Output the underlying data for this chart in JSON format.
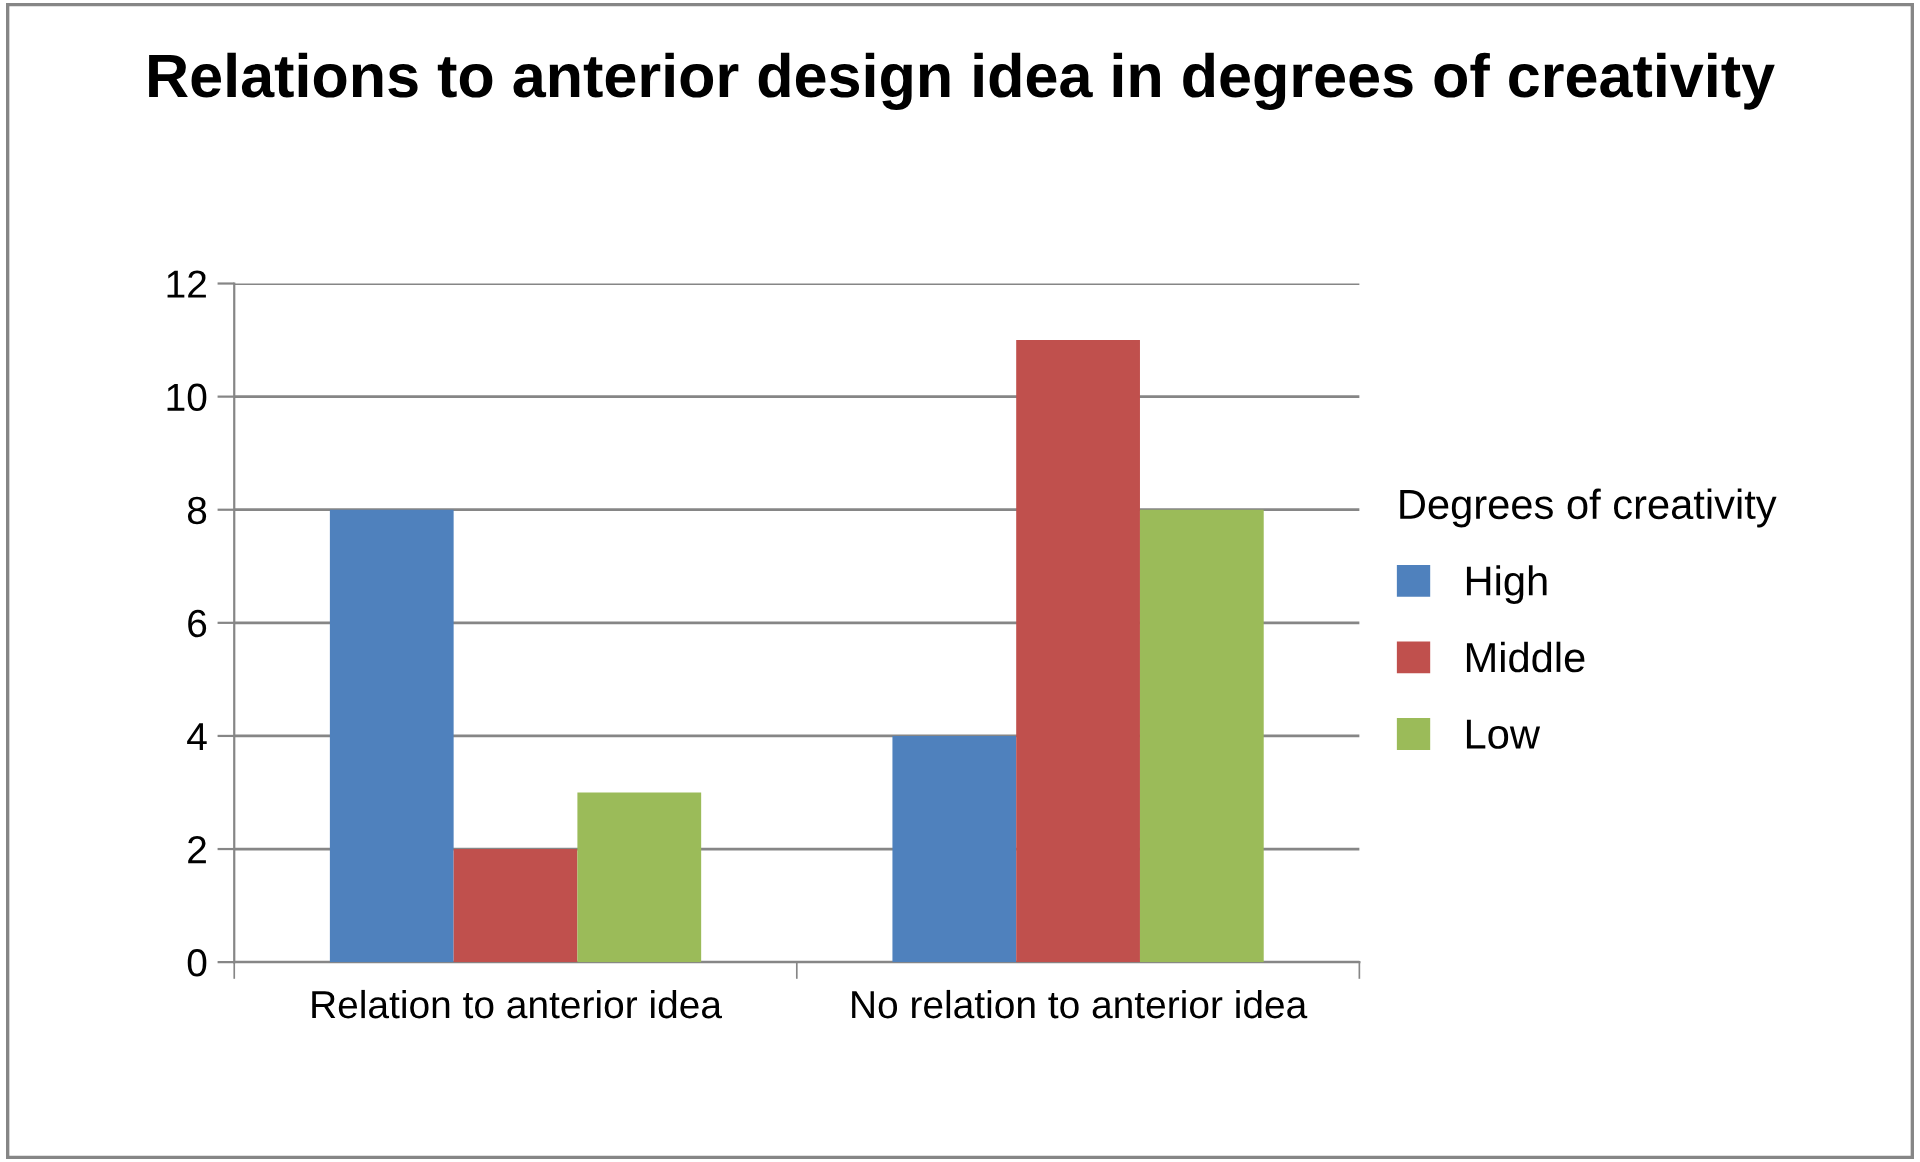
{
  "chart_data": {
    "type": "bar",
    "title": "Relations to anterior design idea in degrees of creativity",
    "legend_title": "Degrees of creativity",
    "categories": [
      "Relation to anterior idea",
      "No relation to anterior idea"
    ],
    "series": [
      {
        "name": "High",
        "color": "#4f81bd",
        "values": [
          8,
          4
        ]
      },
      {
        "name": "Middle",
        "color": "#c0504d",
        "values": [
          2,
          11
        ]
      },
      {
        "name": "Low",
        "color": "#9bbb59",
        "values": [
          3,
          8
        ]
      }
    ],
    "ylim": [
      0,
      12
    ],
    "yticks": [
      0,
      2,
      4,
      6,
      8,
      10,
      12
    ],
    "grid": "y",
    "legend": "right"
  }
}
